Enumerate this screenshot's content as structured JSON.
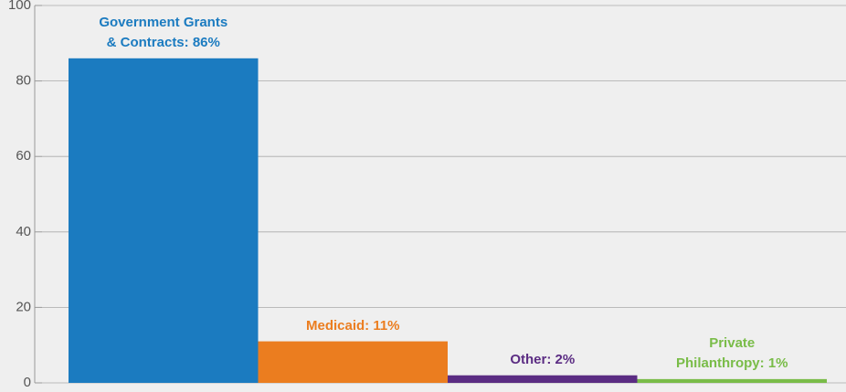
{
  "chart_data": {
    "type": "bar",
    "values": [
      86,
      11,
      2,
      1
    ],
    "value_labels": [
      "Government Grants & Contracts: 86%",
      "Medicaid: 11%",
      "Other: 2%",
      "Private Philanthropy: 1%"
    ],
    "colors": [
      "#1b7bc0",
      "#eb7d1f",
      "#5b2c83",
      "#79bc48"
    ],
    "ylim": [
      0,
      100
    ],
    "yticks": [
      0,
      20,
      40,
      60,
      80,
      100
    ],
    "grid": true
  }
}
